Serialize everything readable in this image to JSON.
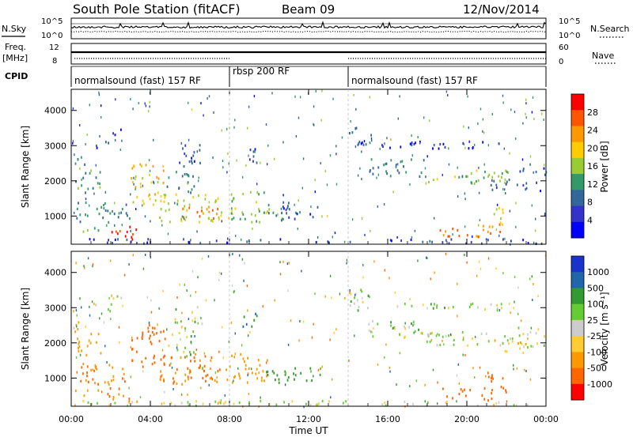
{
  "header": {
    "station": "South Pole Station (fitACF)",
    "beam": "Beam 09",
    "date": "12/Nov/2014"
  },
  "chart_data": [
    {
      "type": "line",
      "panel": "noise",
      "labels_left": [
        "N.Sky",
        "10^5",
        "10^0"
      ],
      "labels_right": [
        "10^5",
        "10^0",
        "N.Search"
      ]
    },
    {
      "type": "line",
      "panel": "frequency",
      "labels_left": [
        "Freq.",
        "[MHz]",
        "12",
        "8"
      ],
      "labels_right": [
        "60",
        "0",
        "Nave"
      ]
    },
    {
      "type": "table",
      "panel": "cpid",
      "label": "CPID",
      "segments": [
        {
          "label": "normalsound (fast) 157 RF",
          "start": 0,
          "end": 8
        },
        {
          "label": "rbsp 200 RF",
          "start": 8,
          "end": 14
        },
        {
          "label": "normalsound (fast) 157 RF",
          "start": 14,
          "end": 24
        }
      ]
    },
    {
      "type": "heatmap",
      "panel": "power",
      "ylabel": "Slant Range [km]",
      "yticks": [
        1000,
        2000,
        3000,
        4000
      ],
      "ylim": [
        200,
        4600
      ],
      "colorbar_label": "Power [dB]",
      "colorbar_ticks": [
        "28",
        "24",
        "20",
        "16",
        "12",
        "8",
        "4"
      ],
      "colorbar_colors": [
        "#ff0000",
        "#ff5500",
        "#ff9900",
        "#ffcc00",
        "#99cc33",
        "#339966",
        "#336699",
        "#3333cc",
        "#0000ff"
      ]
    },
    {
      "type": "heatmap",
      "panel": "velocity",
      "ylabel": "Slant Range [km]",
      "yticks": [
        1000,
        2000,
        3000,
        4000
      ],
      "ylim": [
        200,
        4600
      ],
      "colorbar_label": "Velocity [m s⁻¹]",
      "colorbar_ticks": [
        "1000",
        "500",
        "100",
        "25",
        "-25",
        "-100",
        "-500",
        "-1000"
      ],
      "colorbar_colors": [
        "#1a33cc",
        "#2266aa",
        "#339933",
        "#66cc33",
        "#cccccc",
        "#ffcc33",
        "#ff9900",
        "#ff6600",
        "#ff0000"
      ]
    }
  ],
  "xaxis": {
    "label": "Time UT",
    "ticks": [
      "00:00",
      "04:00",
      "08:00",
      "12:00",
      "16:00",
      "20:00",
      "00:00"
    ],
    "xlim": [
      0,
      24
    ]
  },
  "echo_regions": [
    {
      "t0": 1.8,
      "t1": 3.4,
      "r0": 300,
      "r1": 700,
      "p": 26,
      "v": -300
    },
    {
      "t0": 0.1,
      "t1": 1.4,
      "r0": 450,
      "r1": 650,
      "p": 12,
      "v": -200
    },
    {
      "t0": 0.1,
      "t1": 3.0,
      "r0": 800,
      "r1": 1400,
      "p": 8,
      "v": -300
    },
    {
      "t0": 0.2,
      "t1": 1.5,
      "r0": 1600,
      "r1": 2300,
      "p": 10,
      "v": -200
    },
    {
      "t0": 0.1,
      "t1": 0.8,
      "r0": 2300,
      "r1": 2700,
      "p": 8,
      "v": -100
    },
    {
      "t0": 1.2,
      "t1": 2.0,
      "r0": 2800,
      "r1": 3100,
      "p": 6,
      "v": 30
    },
    {
      "t0": 2.0,
      "t1": 2.5,
      "r0": 3200,
      "r1": 3500,
      "p": 5,
      "v": -50
    },
    {
      "t0": 3.0,
      "t1": 4.8,
      "r0": 1300,
      "r1": 2500,
      "p": 16,
      "v": -400
    },
    {
      "t0": 4.4,
      "t1": 7.6,
      "r0": 800,
      "r1": 1600,
      "p": 14,
      "v": -300
    },
    {
      "t0": 5.6,
      "t1": 7.6,
      "r0": 900,
      "r1": 1300,
      "p": 20,
      "v": -350
    },
    {
      "t0": 4.8,
      "t1": 6.2,
      "r0": 1600,
      "r1": 2300,
      "p": 8,
      "v": 40
    },
    {
      "t0": 5.2,
      "t1": 6.6,
      "r0": 2300,
      "r1": 3000,
      "p": 6,
      "v": 20
    },
    {
      "t0": 7.8,
      "t1": 10.0,
      "r0": 800,
      "r1": 1700,
      "p": 12,
      "v": -200
    },
    {
      "t0": 9.8,
      "t1": 11.0,
      "r0": 800,
      "r1": 1400,
      "p": 8,
      "v": 200
    },
    {
      "t0": 10.6,
      "t1": 12.6,
      "r0": 900,
      "r1": 1300,
      "p": 6,
      "v": 150
    },
    {
      "t0": 8.6,
      "t1": 9.4,
      "r0": 2400,
      "r1": 2900,
      "p": 5,
      "v": 300
    },
    {
      "t0": 14.0,
      "t1": 15.2,
      "r0": 3000,
      "r1": 3500,
      "p": 6,
      "v": 20
    },
    {
      "t0": 15.0,
      "t1": 18.0,
      "r0": 2100,
      "r1": 2600,
      "p": 8,
      "v": 20
    },
    {
      "t0": 17.8,
      "t1": 22.5,
      "r0": 1900,
      "r1": 2300,
      "p": 12,
      "v": 20
    },
    {
      "t0": 22.5,
      "t1": 24.0,
      "r0": 2150,
      "r1": 2450,
      "p": 7,
      "v": 10
    },
    {
      "t0": 21.0,
      "t1": 23.8,
      "r0": 1700,
      "r1": 2050,
      "p": 5,
      "v": -50
    },
    {
      "t0": 18.6,
      "t1": 20.2,
      "r0": 380,
      "r1": 700,
      "p": 22,
      "v": -400
    },
    {
      "t0": 20.4,
      "t1": 22.0,
      "r0": 350,
      "r1": 750,
      "p": 20,
      "v": -450
    },
    {
      "t0": 21.0,
      "t1": 21.8,
      "r0": 700,
      "r1": 1300,
      "p": 14,
      "v": -500
    },
    {
      "t0": 14.0,
      "t1": 22.0,
      "r0": 2900,
      "r1": 3100,
      "p": 3,
      "v": 30
    },
    {
      "t0": 0.0,
      "t1": 24.0,
      "r0": 200,
      "r1": 330,
      "p": 4,
      "v": 10
    }
  ]
}
